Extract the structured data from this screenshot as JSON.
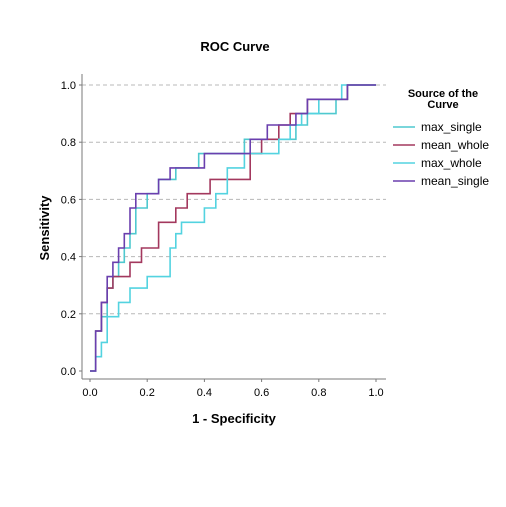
{
  "chart_data": {
    "type": "line",
    "title": "ROC Curve",
    "xlabel": "1 - Specificity",
    "ylabel": "Sensitivity",
    "xlim": [
      0,
      1
    ],
    "ylim": [
      0,
      1
    ],
    "x_ticks": [
      "0.0",
      "0.2",
      "0.4",
      "0.6",
      "0.8",
      "1.0"
    ],
    "y_ticks": [
      "0.0",
      "0.2",
      "0.4",
      "0.6",
      "0.8",
      "1.0"
    ],
    "grid": "horizontal-dashed",
    "legend": {
      "title_line1": "Source of the",
      "title_line2": "Curve",
      "placement": "right"
    },
    "series": [
      {
        "name": "max_single",
        "color": "#4fc9cf",
        "x": [
          0.0,
          0.02,
          0.02,
          0.04,
          0.04,
          0.06,
          0.06,
          0.08,
          0.08,
          0.1,
          0.1,
          0.12,
          0.12,
          0.14,
          0.14,
          0.16,
          0.16,
          0.2,
          0.2,
          0.24,
          0.24,
          0.3,
          0.3,
          0.34,
          0.34,
          0.38,
          0.38,
          0.46,
          0.46,
          0.54,
          0.54,
          0.66,
          0.66,
          0.72,
          0.72,
          0.76,
          0.76,
          0.86,
          0.86,
          0.9,
          0.9,
          1.0
        ],
        "y": [
          0.0,
          0.0,
          0.14,
          0.14,
          0.19,
          0.19,
          0.29,
          0.29,
          0.33,
          0.33,
          0.38,
          0.38,
          0.43,
          0.43,
          0.48,
          0.48,
          0.57,
          0.57,
          0.62,
          0.62,
          0.67,
          0.67,
          0.71,
          0.71,
          0.71,
          0.71,
          0.76,
          0.76,
          0.76,
          0.76,
          0.81,
          0.81,
          0.81,
          0.81,
          0.86,
          0.86,
          0.9,
          0.9,
          0.95,
          0.95,
          1.0,
          1.0
        ]
      },
      {
        "name": "mean_whole",
        "color": "#a3385e",
        "x": [
          0.0,
          0.02,
          0.02,
          0.04,
          0.04,
          0.06,
          0.06,
          0.08,
          0.08,
          0.14,
          0.14,
          0.18,
          0.18,
          0.24,
          0.24,
          0.3,
          0.3,
          0.34,
          0.34,
          0.38,
          0.38,
          0.42,
          0.42,
          0.5,
          0.5,
          0.56,
          0.56,
          0.6,
          0.6,
          0.66,
          0.66,
          0.7,
          0.7,
          0.76,
          0.76,
          0.86,
          0.86,
          0.9,
          0.9,
          1.0
        ],
        "y": [
          0.0,
          0.0,
          0.14,
          0.14,
          0.24,
          0.24,
          0.29,
          0.29,
          0.33,
          0.33,
          0.38,
          0.38,
          0.43,
          0.43,
          0.52,
          0.52,
          0.57,
          0.57,
          0.62,
          0.62,
          0.62,
          0.62,
          0.67,
          0.67,
          0.67,
          0.67,
          0.76,
          0.76,
          0.81,
          0.81,
          0.86,
          0.86,
          0.9,
          0.9,
          0.95,
          0.95,
          0.95,
          0.95,
          1.0,
          1.0
        ]
      },
      {
        "name": "max_whole",
        "color": "#53d3e0",
        "x": [
          0.0,
          0.02,
          0.02,
          0.04,
          0.04,
          0.06,
          0.06,
          0.08,
          0.08,
          0.1,
          0.1,
          0.12,
          0.12,
          0.14,
          0.14,
          0.2,
          0.2,
          0.28,
          0.28,
          0.3,
          0.3,
          0.32,
          0.32,
          0.4,
          0.4,
          0.44,
          0.44,
          0.48,
          0.48,
          0.54,
          0.54,
          0.66,
          0.66,
          0.7,
          0.7,
          0.74,
          0.74,
          0.8,
          0.8,
          0.88,
          0.88,
          1.0
        ],
        "y": [
          0.0,
          0.0,
          0.05,
          0.05,
          0.1,
          0.1,
          0.19,
          0.19,
          0.19,
          0.19,
          0.24,
          0.24,
          0.24,
          0.24,
          0.29,
          0.29,
          0.33,
          0.33,
          0.43,
          0.43,
          0.48,
          0.48,
          0.52,
          0.52,
          0.57,
          0.57,
          0.62,
          0.62,
          0.71,
          0.71,
          0.76,
          0.76,
          0.81,
          0.81,
          0.86,
          0.86,
          0.9,
          0.9,
          0.95,
          0.95,
          1.0,
          1.0
        ]
      },
      {
        "name": "mean_single",
        "color": "#6a3fae",
        "x": [
          0.0,
          0.02,
          0.02,
          0.04,
          0.04,
          0.06,
          0.06,
          0.08,
          0.08,
          0.1,
          0.1,
          0.12,
          0.12,
          0.14,
          0.14,
          0.16,
          0.16,
          0.24,
          0.24,
          0.28,
          0.28,
          0.4,
          0.4,
          0.56,
          0.56,
          0.62,
          0.62,
          0.72,
          0.72,
          0.76,
          0.76,
          0.9,
          0.9,
          1.0
        ],
        "y": [
          0.0,
          0.0,
          0.14,
          0.14,
          0.24,
          0.24,
          0.33,
          0.33,
          0.38,
          0.38,
          0.43,
          0.43,
          0.48,
          0.48,
          0.57,
          0.57,
          0.62,
          0.62,
          0.67,
          0.67,
          0.71,
          0.71,
          0.76,
          0.76,
          0.81,
          0.81,
          0.86,
          0.86,
          0.9,
          0.9,
          0.95,
          0.95,
          1.0,
          1.0
        ]
      }
    ]
  }
}
